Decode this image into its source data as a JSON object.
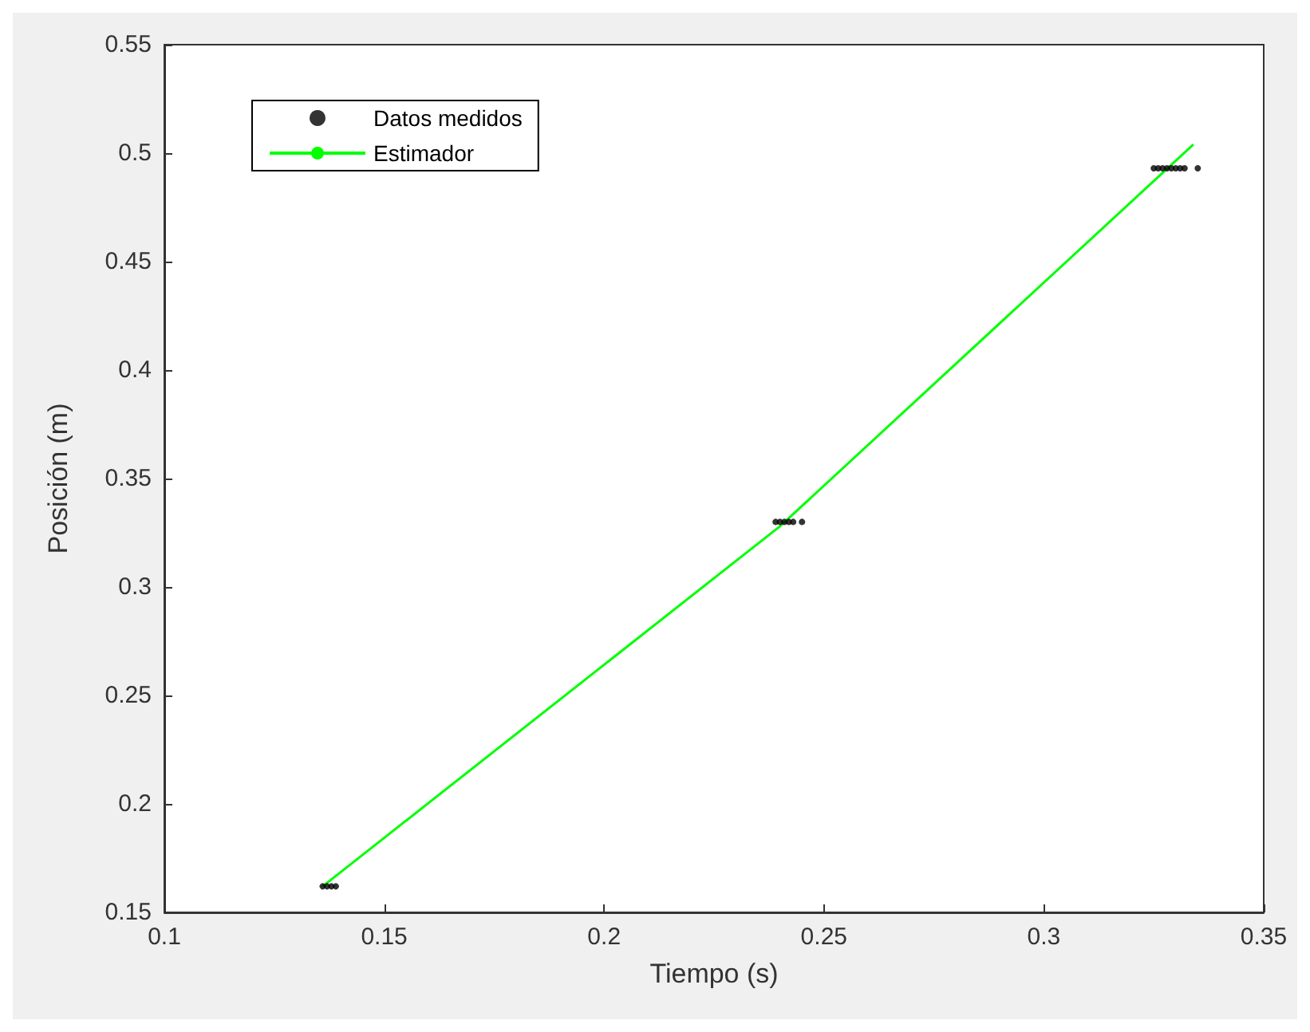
{
  "chart_data": {
    "type": "scatter",
    "xlabel": "Tiempo (s)",
    "ylabel": "Posición (m)",
    "xlim": [
      0.1,
      0.35
    ],
    "xticks": [
      0.1,
      0.15,
      0.2,
      0.25,
      0.3,
      0.35
    ],
    "ylim": [
      0.15,
      0.55
    ],
    "yticks": [
      0.15,
      0.2,
      0.25,
      0.3,
      0.35,
      0.4,
      0.45,
      0.5,
      0.55
    ],
    "grid": false,
    "legend": "top left",
    "series": [
      {
        "name": "Datos medidos",
        "type": "scatter",
        "marker": "circle",
        "color": "#000000",
        "x": [
          0.136,
          0.137,
          0.138,
          0.139,
          0.239,
          0.24,
          0.241,
          0.242,
          0.243,
          0.245,
          0.325,
          0.326,
          0.327,
          0.328,
          0.329,
          0.33,
          0.331,
          0.332,
          0.335
        ],
        "values": [
          0.162,
          0.162,
          0.162,
          0.162,
          0.33,
          0.33,
          0.33,
          0.33,
          0.33,
          0.33,
          0.493,
          0.493,
          0.493,
          0.493,
          0.493,
          0.493,
          0.493,
          0.493,
          0.493
        ]
      },
      {
        "name": "Estimador",
        "type": "line",
        "marker": "none",
        "line_style": "solid",
        "color": "#00ff00",
        "x": [
          0.136,
          0.24,
          0.334
        ],
        "values": [
          0.162,
          0.328,
          0.504
        ]
      }
    ]
  }
}
